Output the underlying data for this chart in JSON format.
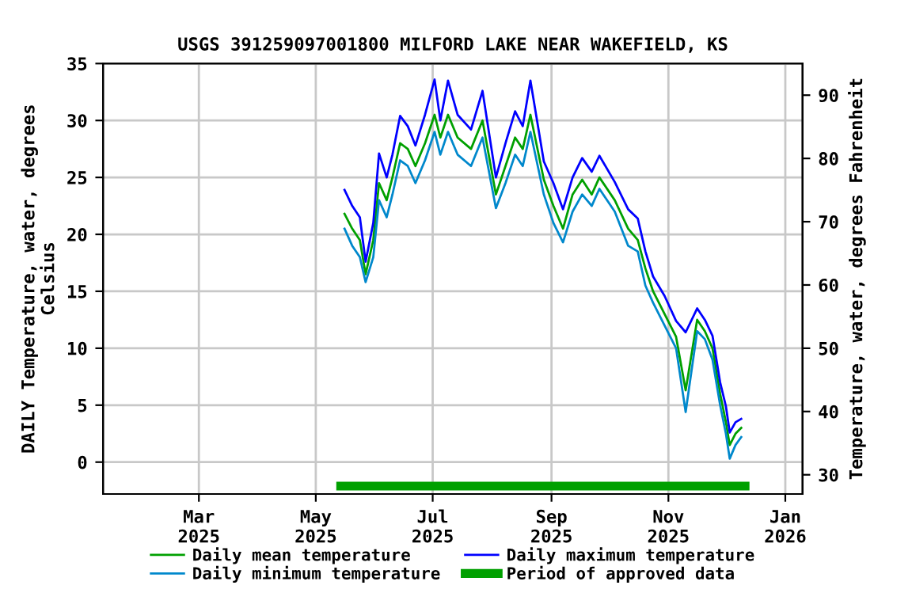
{
  "chart_data": {
    "type": "line",
    "title": "USGS 391259097001800 MILFORD LAKE NEAR WAKEFIELD, KS",
    "ylabel": "DAILY Temperature, water, degrees\nCelsius",
    "y2label": "Temperature, water, degrees Fahrenheit",
    "x": [
      "2025-05-16",
      "2025-05-20",
      "2025-05-24",
      "2025-05-27",
      "2025-05-31",
      "2025-06-03",
      "2025-06-07",
      "2025-06-10",
      "2025-06-14",
      "2025-06-18",
      "2025-06-22",
      "2025-06-27",
      "2025-07-02",
      "2025-07-05",
      "2025-07-09",
      "2025-07-14",
      "2025-07-21",
      "2025-07-27",
      "2025-08-03",
      "2025-08-08",
      "2025-08-13",
      "2025-08-17",
      "2025-08-21",
      "2025-08-28",
      "2025-09-02",
      "2025-09-07",
      "2025-09-12",
      "2025-09-17",
      "2025-09-22",
      "2025-09-26",
      "2025-10-04",
      "2025-10-11",
      "2025-10-16",
      "2025-10-20",
      "2025-10-24",
      "2025-10-30",
      "2025-11-05",
      "2025-11-10",
      "2025-11-16",
      "2025-11-20",
      "2025-11-24",
      "2025-11-28",
      "2025-12-01",
      "2025-12-03",
      "2025-12-06",
      "2025-12-09"
    ],
    "series": [
      {
        "name": "Daily mean temperature",
        "color": "#00a000",
        "values": [
          21.8,
          20.5,
          19.5,
          16.5,
          19.5,
          24.5,
          23,
          25,
          28,
          27.5,
          26,
          28,
          30.5,
          28.5,
          30.5,
          28.5,
          27.5,
          30,
          23.5,
          26,
          28.5,
          27.5,
          30.5,
          24.8,
          22.5,
          20.5,
          23.5,
          24.8,
          23.5,
          25,
          23,
          20.5,
          19.5,
          17,
          15,
          13,
          11,
          6.3,
          12.5,
          11.5,
          10,
          6,
          3.5,
          1.5,
          2.5,
          3.0
        ]
      },
      {
        "name": "Daily minimum temperature",
        "color": "#0088cc",
        "values": [
          20.5,
          19,
          18,
          15.8,
          18,
          23,
          21.5,
          23.5,
          26.5,
          26,
          24.5,
          26.5,
          29,
          27,
          29,
          27,
          26,
          28.5,
          22.3,
          24.5,
          27,
          26,
          29,
          23.5,
          21,
          19.3,
          22,
          23.5,
          22.5,
          24,
          22,
          19,
          18.5,
          15.5,
          14,
          12,
          10,
          4.4,
          11.5,
          10.8,
          9,
          5,
          2.5,
          0.3,
          1.5,
          2.2
        ]
      },
      {
        "name": "Daily maximum temperature",
        "color": "#0000ff",
        "values": [
          23.9,
          22.5,
          21.5,
          17.6,
          21,
          27.1,
          25,
          27,
          30.4,
          29.5,
          27.8,
          30.5,
          33.6,
          30,
          33.5,
          30.5,
          29.2,
          32.6,
          25,
          28,
          30.8,
          29.5,
          33.5,
          26.4,
          24.5,
          22.2,
          25,
          26.7,
          25.5,
          26.9,
          24.6,
          22.2,
          21.4,
          18.5,
          16.3,
          14.6,
          12.4,
          11.4,
          13.5,
          12.5,
          11.1,
          7,
          4.9,
          2.6,
          3.5,
          3.8
        ]
      },
      {
        "name": "Period of approved data",
        "color": "#00a000",
        "x": [
          "2025-05-14",
          "2025-12-11"
        ],
        "values": [
          -2.1,
          -2.1
        ]
      }
    ],
    "xlim": [
      "2025-01-10",
      "2026-01-10"
    ],
    "xticks": [
      {
        "value": "2025-03-01",
        "label": "Mar\n2025"
      },
      {
        "value": "2025-05-01",
        "label": "May\n2025"
      },
      {
        "value": "2025-07-01",
        "label": "Jul\n2025"
      },
      {
        "value": "2025-09-01",
        "label": "Sep\n2025"
      },
      {
        "value": "2025-11-01",
        "label": "Nov\n2025"
      },
      {
        "value": "2026-01-01",
        "label": "Jan\n2026"
      }
    ],
    "ylim": [
      -2.8,
      35
    ],
    "yticks": [
      0,
      5,
      10,
      15,
      20,
      25,
      30,
      35
    ],
    "y2lim": [
      26.96,
      95
    ],
    "y2ticks": [
      30,
      40,
      50,
      60,
      70,
      80,
      90
    ],
    "grid": true,
    "legend": "bottom",
    "line_style": "solid",
    "marker": "none"
  }
}
